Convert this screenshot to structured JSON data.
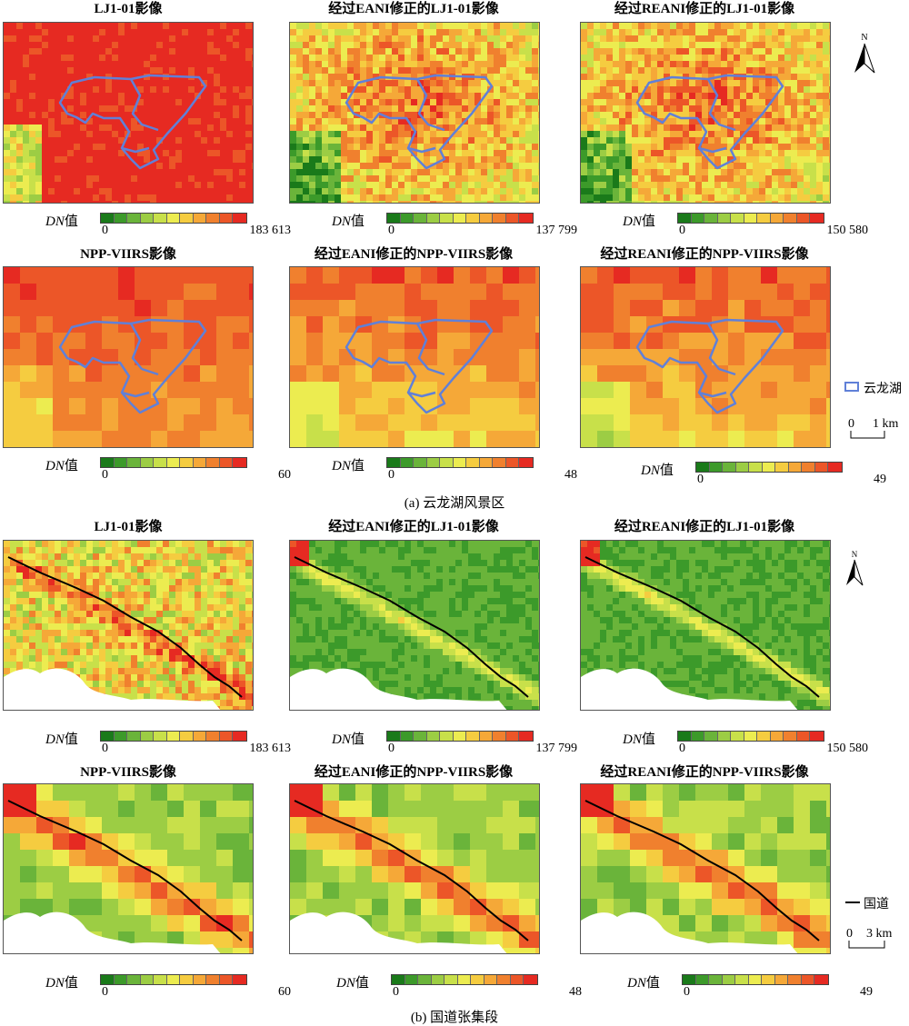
{
  "section_a": {
    "caption": "(a) 云龙湖风景区",
    "legend_item": "云龙湖",
    "scale_zero": "0",
    "scale_dist": "1 km"
  },
  "section_b": {
    "caption": "(b) 国道张集段",
    "legend_item": "国道",
    "scale_zero": "0",
    "scale_dist": "3 km"
  },
  "north_label": "N",
  "dn_prefix": "DN",
  "dn_suffix": "值",
  "legend_zero": "0",
  "titles": {
    "lj1": "LJ1-01影像",
    "lj1_eani": "经过EANI修正的LJ1-01影像",
    "lj1_reani": "经过REANI修正的LJ1-01影像",
    "npp": "NPP-VIIRS影像",
    "npp_eani": "经过EANI修正的NPP-VIIRS影像",
    "npp_reani": "经过REANI修正的NPP-VIIRS影像"
  },
  "legend_max": {
    "lj1": "183 613",
    "lj1_eani": "137 799",
    "lj1_reani": "150 580",
    "npp": "60",
    "npp_eani": "48",
    "npp_reani": "49"
  },
  "colors": {
    "ramp": [
      "#1a7a1a",
      "#3c9a2a",
      "#6ab43a",
      "#9ccd44",
      "#c8e04a",
      "#ecec50",
      "#f5cc40",
      "#f5a838",
      "#f0802e",
      "#ec5628",
      "#e62a22"
    ],
    "lake_outline": "#6080d8",
    "road_line": "#000000"
  }
}
